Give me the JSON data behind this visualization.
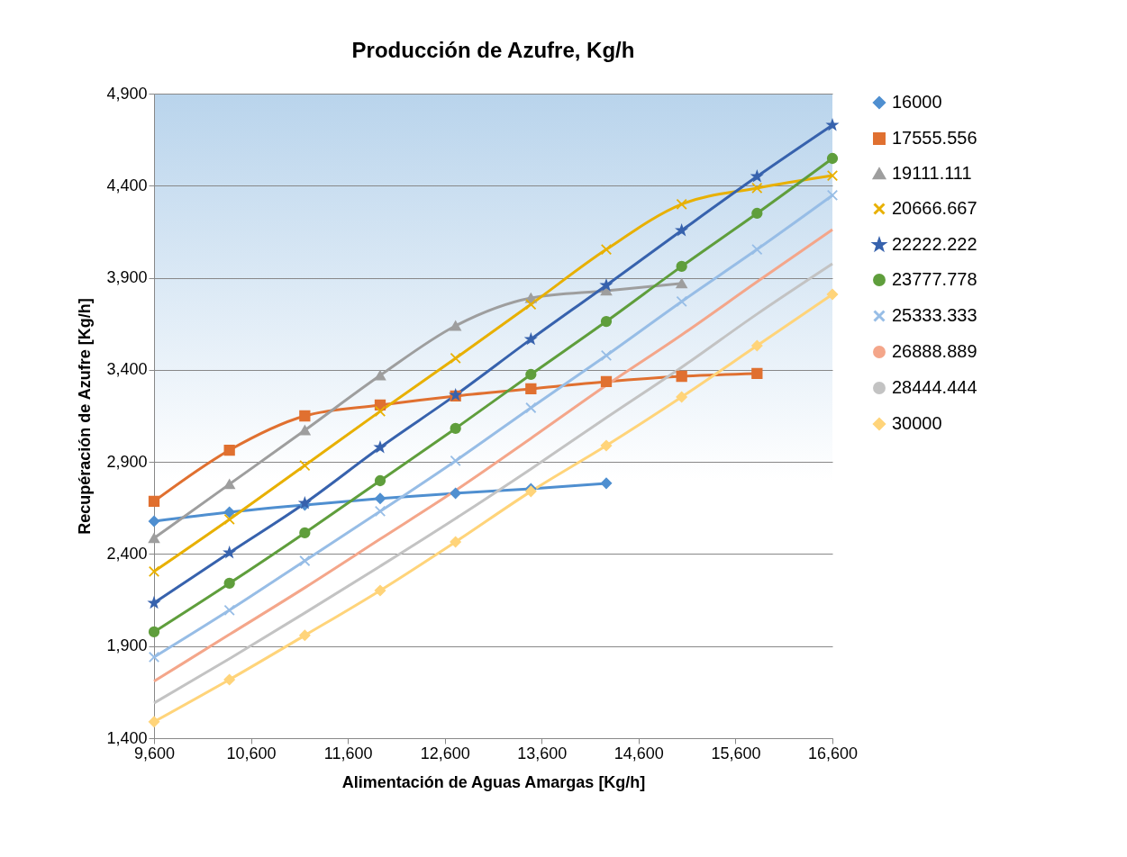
{
  "chart_data": {
    "type": "line",
    "title": "Producción de Azufre, Kg/h",
    "xlabel": "Alimentación de Aguas Amargas [Kg/h]",
    "ylabel": "Recupéración de Azufre [Kg/h]",
    "x": [
      9600,
      10377.8,
      11155.6,
      11933.3,
      12711.1,
      13488.9,
      14266.7,
      15044.4,
      15822.2,
      16600
    ],
    "xlim": [
      9600,
      16600
    ],
    "xticks": [
      {
        "value": 9600,
        "label": "9,600"
      },
      {
        "value": 10600,
        "label": "10,600"
      },
      {
        "value": 11600,
        "label": "11,600"
      },
      {
        "value": 12600,
        "label": "12,600"
      },
      {
        "value": 13600,
        "label": "13,600"
      },
      {
        "value": 14600,
        "label": "14,600"
      },
      {
        "value": 15600,
        "label": "15,600"
      },
      {
        "value": 16600,
        "label": "16,600"
      }
    ],
    "ylim": [
      1400,
      4900
    ],
    "yticks": [
      {
        "value": 1400,
        "label": "1,400"
      },
      {
        "value": 1900,
        "label": "1,900"
      },
      {
        "value": 2400,
        "label": "2,400"
      },
      {
        "value": 2900,
        "label": "2,900"
      },
      {
        "value": 3400,
        "label": "3,400"
      },
      {
        "value": 3900,
        "label": "3,900"
      },
      {
        "value": 4400,
        "label": "4,400"
      },
      {
        "value": 4900,
        "label": "4,900"
      }
    ],
    "grid": "y",
    "legend": "right",
    "series": [
      {
        "name": "16000",
        "color": "#4f8fd0",
        "marker": "diamond",
        "values": [
          2578,
          2627,
          2666,
          2701,
          2730,
          2754,
          2784,
          null,
          null,
          null
        ]
      },
      {
        "name": "17555.556",
        "color": "#e07030",
        "marker": "square",
        "values": [
          2686,
          2964,
          3150,
          3209,
          3258,
          3297,
          3336,
          3365,
          3380,
          null
        ]
      },
      {
        "name": "19111.111",
        "color": "#9e9e9e",
        "marker": "triangle",
        "values": [
          2486,
          2779,
          3072,
          3370,
          3639,
          3790,
          3830,
          3869,
          null,
          null
        ]
      },
      {
        "name": "20666.667",
        "color": "#e8b000",
        "marker": "cross",
        "values": [
          2305,
          2588,
          2881,
          3175,
          3463,
          3756,
          4054,
          4299,
          4387,
          4455
        ]
      },
      {
        "name": "22222.222",
        "color": "#3762ad",
        "marker": "star",
        "values": [
          2134,
          2407,
          2676,
          2979,
          3263,
          3566,
          3859,
          4157,
          4450,
          4729
        ]
      },
      {
        "name": "23777.778",
        "color": "#5f9e3c",
        "marker": "circle",
        "values": [
          1977,
          2241,
          2515,
          2798,
          3082,
          3375,
          3663,
          3962,
          4250,
          4548
        ]
      },
      {
        "name": "25333.333",
        "color": "#97bde6",
        "marker": "cross",
        "values": [
          1840,
          2095,
          2363,
          2632,
          2906,
          3194,
          3478,
          3771,
          4054,
          4348
        ]
      },
      {
        "name": "26888.889",
        "color": "#f4a68a",
        "marker": "none",
        "values": [
          1709,
          1963,
          2217,
          2481,
          2745,
          3028,
          3316,
          3590,
          3878,
          4162
        ]
      },
      {
        "name": "28444.444",
        "color": "#c3c3c3",
        "marker": "none",
        "values": [
          1591,
          1831,
          2080,
          2334,
          2593,
          2862,
          3140,
          3414,
          3703,
          3976
        ]
      },
      {
        "name": "30000",
        "color": "#ffd47a",
        "marker": "diamond",
        "values": [
          1489,
          1718,
          1958,
          2202,
          2466,
          2740,
          2989,
          3253,
          3531,
          3810
        ]
      }
    ]
  }
}
